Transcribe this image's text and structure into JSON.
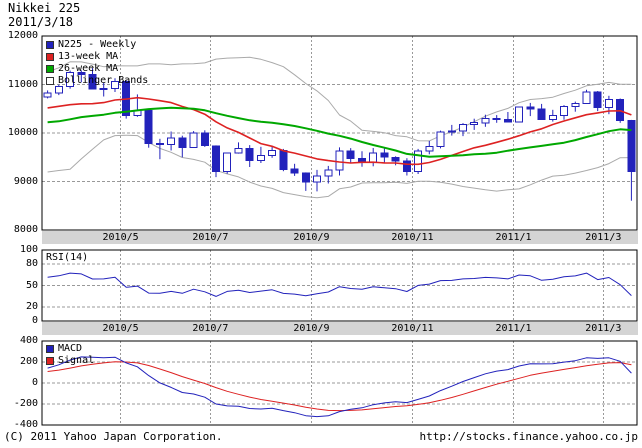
{
  "header": {
    "title": "Nikkei 225",
    "date": "2011/3/18"
  },
  "footer": {
    "copyright": "(C) 2011 Yahoo Japan Corporation.",
    "url": "http://stocks.finance.yahoo.co.jp"
  },
  "colors": {
    "price": "#2222bb",
    "up_fill": "#ffffff",
    "ma13": "#dd2222",
    "ma26": "#00a800",
    "bollinger": "#aaaaaa",
    "bollinger_swatch": "#ffffff",
    "rsi": "#2222bb",
    "macd": "#2222bb",
    "signal": "#dd2222",
    "grid": "#999999",
    "strip": "#d4d4d4",
    "border": "#000000"
  },
  "chart_data": [
    {
      "type": "candlestick",
      "name": "price-panel",
      "legend": [
        "N225 - Weekly",
        "13-week MA",
        "26-week MA",
        "Bollinger Bands"
      ],
      "ylim": [
        8000,
        12000
      ],
      "y_ticks": [
        12000,
        11000,
        10000,
        9000,
        8000
      ],
      "dashed_levels": [
        11000,
        10000,
        9000
      ],
      "x_tick_labels": [
        "2010/5",
        "2010/7",
        "2010/9",
        "2010/11",
        "2011/1",
        "2011/3"
      ],
      "x_tick_weeks": [
        7,
        15,
        24,
        33,
        42,
        50
      ],
      "ma_fast_period": 13,
      "ma_slow_period": 26,
      "bollinger_period": 20,
      "bollinger_stddev": 2,
      "dates": [
        "2010/3/19",
        "2010/3/26",
        "2010/4/2",
        "2010/4/9",
        "2010/4/16",
        "2010/4/23",
        "2010/4/30",
        "2010/5/7",
        "2010/5/14",
        "2010/5/21",
        "2010/5/28",
        "2010/6/4",
        "2010/6/11",
        "2010/6/18",
        "2010/6/25",
        "2010/7/2",
        "2010/7/9",
        "2010/7/16",
        "2010/7/23",
        "2010/7/30",
        "2010/8/6",
        "2010/8/13",
        "2010/8/20",
        "2010/8/27",
        "2010/9/3",
        "2010/9/10",
        "2010/9/17",
        "2010/9/24",
        "2010/10/1",
        "2010/10/8",
        "2010/10/15",
        "2010/10/22",
        "2010/10/29",
        "2010/11/5",
        "2010/11/12",
        "2010/11/19",
        "2010/11/26",
        "2010/12/3",
        "2010/12/10",
        "2010/12/17",
        "2010/12/24",
        "2010/12/30",
        "2011/1/7",
        "2011/1/14",
        "2011/1/21",
        "2011/1/28",
        "2011/2/4",
        "2011/2/10",
        "2011/2/18",
        "2011/2/25",
        "2011/3/4",
        "2011/3/11",
        "2011/3/18"
      ],
      "open": [
        10744,
        10824,
        10958,
        11244,
        11204,
        10909,
        10914,
        11057,
        10365,
        10462,
        9785,
        9762,
        9901,
        9705,
        9995,
        9737,
        9203,
        9585,
        9685,
        9431,
        9537,
        9642,
        9253,
        9179,
        8991,
        9114,
        9239,
        9626,
        9471,
        9404,
        9589,
        9500,
        9427,
        9202,
        9626,
        9725,
        10022,
        10039,
        10178,
        10212,
        10304,
        10279,
        10229,
        10541,
        10499,
        10274,
        10360,
        10543,
        10605,
        10842,
        10526,
        10693,
        10254
      ],
      "high": [
        10879,
        10996,
        11286,
        11292,
        11339,
        11031,
        11127,
        11088,
        10795,
        10506,
        9880,
        10030,
        9945,
        10040,
        10055,
        9745,
        9585,
        9807,
        9751,
        9715,
        9726,
        9672,
        9364,
        9187,
        9239,
        9321,
        9704,
        9689,
        9623,
        9691,
        9706,
        9520,
        9480,
        9672,
        9837,
        10050,
        10167,
        10204,
        10294,
        10378,
        10370,
        10433,
        10541,
        10620,
        10599,
        10478,
        10575,
        10648,
        10891,
        10865,
        10768,
        10711,
        10270
      ],
      "low": [
        10713,
        10782,
        10914,
        11046,
        10908,
        10753,
        10846,
        10296,
        10335,
        9696,
        9459,
        9640,
        9500,
        9692,
        9714,
        9091,
        9160,
        9575,
        9299,
        9382,
        9489,
        9212,
        9116,
        8807,
        8796,
        8959,
        9123,
        9381,
        9303,
        9314,
        9378,
        9334,
        9123,
        9154,
        9560,
        9682,
        9946,
        9936,
        10063,
        10128,
        10210,
        10216,
        10219,
        10349,
        10269,
        10235,
        10274,
        10440,
        10601,
        10452,
        10387,
        10210,
        8605
      ],
      "close": [
        10824,
        10958,
        11244,
        11204,
        10909,
        10914,
        11057,
        10365,
        10462,
        9785,
        9762,
        9901,
        9705,
        9995,
        9737,
        9203,
        9585,
        9685,
        9431,
        9537,
        9642,
        9253,
        9179,
        8991,
        9114,
        9239,
        9626,
        9471,
        9404,
        9589,
        9500,
        9427,
        9202,
        9626,
        9725,
        10022,
        10039,
        10178,
        10212,
        10304,
        10279,
        10229,
        10541,
        10499,
        10274,
        10360,
        10543,
        10605,
        10842,
        10526,
        10693,
        10254,
        9206
      ],
      "indicator_warmup_closes": [
        9630,
        9958,
        9768,
        9786,
        9941,
        9877,
        10136,
        10161,
        10494,
        10665,
        10412,
        10238,
        10534,
        10397,
        10443,
        10187,
        10016,
        10283,
        10257,
        10035,
        9790,
        9770,
        9082,
        9358,
        9525,
        9978,
        10308,
        10546,
        10798,
        10982,
        10882,
        10607,
        10360,
        10126,
        10092,
        10124,
        10224,
        10420,
        10751
      ]
    },
    {
      "type": "line",
      "name": "rsi-panel",
      "label": "RSI(14)",
      "period": 14,
      "ylim": [
        0,
        100
      ],
      "y_ticks": [
        100,
        80,
        50,
        20,
        0
      ],
      "dashed_levels": [
        80,
        50,
        20
      ]
    },
    {
      "type": "line",
      "name": "macd-panel",
      "legend": [
        "MACD",
        "Signal"
      ],
      "params": [
        12,
        26,
        9
      ],
      "ylim": [
        -400,
        400
      ],
      "y_ticks": [
        400,
        200,
        0,
        -200,
        -400
      ],
      "dashed_levels": [
        200,
        0,
        -200
      ]
    }
  ]
}
